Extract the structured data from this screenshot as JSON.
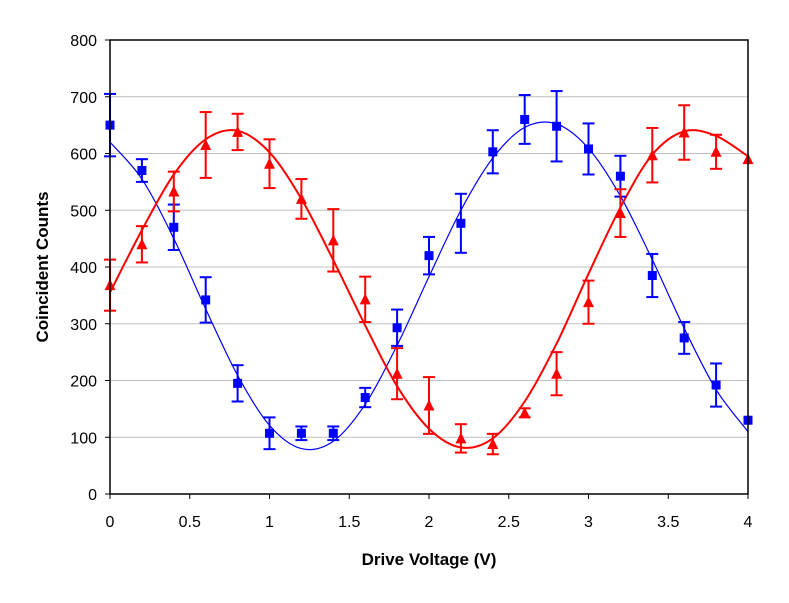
{
  "chart_data": {
    "type": "scatter",
    "title": "",
    "xlabel": "Drive Voltage (V)",
    "ylabel": "Coincident Counts",
    "xlim": [
      0,
      4
    ],
    "ylim": [
      0,
      800
    ],
    "xticks": [
      0,
      0.5,
      1,
      1.5,
      2,
      2.5,
      3,
      3.5,
      4
    ],
    "xtick_labels": [
      "0",
      "0.5",
      "1",
      "1.5",
      "2",
      "2.5",
      "3",
      "3.5",
      "4"
    ],
    "yticks": [
      0,
      100,
      200,
      300,
      400,
      500,
      600,
      700,
      800
    ],
    "ytick_labels": [
      "0",
      "100",
      "200",
      "300",
      "400",
      "500",
      "600",
      "700",
      "800"
    ],
    "grid": "horizontal",
    "series": [
      {
        "name": "blue squares",
        "color": "#0000ff",
        "marker": "square",
        "x": [
          0,
          0.2,
          0.4,
          0.6,
          0.8,
          1.0,
          1.2,
          1.4,
          1.6,
          1.8,
          2.0,
          2.2,
          2.4,
          2.6,
          2.8,
          3.0,
          3.2,
          3.4,
          3.6,
          3.8,
          4.0
        ],
        "y": [
          650,
          570,
          470,
          342,
          195,
          107,
          107,
          107,
          170,
          293,
          420,
          477,
          603,
          660,
          648,
          608,
          560,
          385,
          275,
          192,
          130
        ],
        "yerr": [
          55,
          20,
          40,
          40,
          32,
          28,
          12,
          12,
          17,
          32,
          33,
          52,
          38,
          43,
          62,
          45,
          36,
          38,
          28,
          38,
          0
        ],
        "fit": {
          "color": "#0000ff",
          "points": [
            [
              0,
              620
            ],
            [
              0.2,
              555
            ],
            [
              0.4,
              450
            ],
            [
              0.6,
              326
            ],
            [
              0.8,
              209
            ],
            [
              1.0,
              121
            ],
            [
              1.2,
              80
            ],
            [
              1.4,
              93
            ],
            [
              1.6,
              158
            ],
            [
              1.8,
              262
            ],
            [
              2.0,
              383
            ],
            [
              2.2,
              500
            ],
            [
              2.4,
              592
            ],
            [
              2.6,
              646
            ],
            [
              2.8,
              652
            ],
            [
              3.0,
              609
            ],
            [
              3.2,
              525
            ],
            [
              3.4,
              413
            ],
            [
              3.6,
              292
            ],
            [
              3.8,
              184
            ],
            [
              4.0,
              110
            ]
          ]
        }
      },
      {
        "name": "red triangles",
        "color": "#ff0000",
        "marker": "triangle",
        "x": [
          0,
          0.2,
          0.4,
          0.6,
          0.8,
          1.0,
          1.2,
          1.4,
          1.6,
          1.8,
          2.0,
          2.2,
          2.4,
          2.6,
          2.8,
          3.0,
          3.2,
          3.4,
          3.6,
          3.8,
          4.0
        ],
        "y": [
          368,
          440,
          533,
          615,
          638,
          582,
          520,
          447,
          343,
          212,
          156,
          98,
          88,
          143,
          212,
          338,
          495,
          597,
          637,
          603,
          590
        ],
        "yerr": [
          45,
          32,
          35,
          58,
          32,
          43,
          35,
          55,
          40,
          45,
          50,
          25,
          18,
          8,
          38,
          38,
          42,
          48,
          48,
          30,
          0
        ],
        "fit": {
          "color": "#ff0000",
          "points": [
            [
              0,
              355
            ],
            [
              0.2,
              465
            ],
            [
              0.4,
              563
            ],
            [
              0.6,
              625
            ],
            [
              0.8,
              640
            ],
            [
              1.0,
              602
            ],
            [
              1.2,
              520
            ],
            [
              1.4,
              412
            ],
            [
              1.6,
              297
            ],
            [
              1.8,
              190
            ],
            [
              2.0,
              115
            ],
            [
              2.2,
              82
            ],
            [
              2.4,
              98
            ],
            [
              2.6,
              163
            ],
            [
              2.8,
              265
            ],
            [
              3.0,
              388
            ],
            [
              3.2,
              505
            ],
            [
              3.4,
              598
            ],
            [
              3.6,
              639
            ],
            [
              3.8,
              631
            ],
            [
              4.0,
              595
            ]
          ]
        }
      }
    ]
  }
}
